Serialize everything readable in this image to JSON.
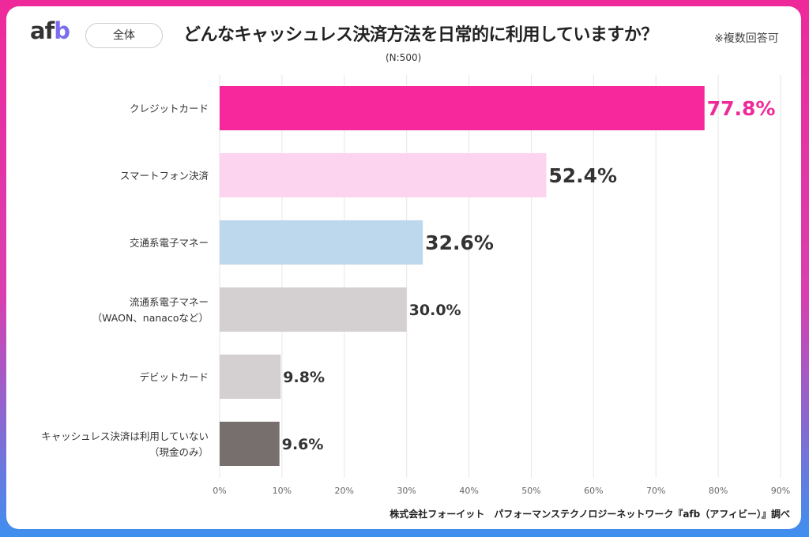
{
  "header": {
    "logo": "afb",
    "filter_pill": "全体",
    "title": "どんなキャッシュレス決済方法を日常的に利用していますか？",
    "note": "※複数回答可",
    "sample": "(N:500)"
  },
  "source": "株式会社フォーイット　パフォーマンステクノロジーネットワーク『afb（アフィビー）』調べ",
  "chart_data": {
    "type": "bar",
    "orientation": "horizontal",
    "title": "どんなキャッシュレス決済方法を日常的に利用していますか？",
    "categories": [
      [
        "クレジットカード"
      ],
      [
        "スマートフォン決済"
      ],
      [
        "交通系電子マネー"
      ],
      [
        "流通系電子マネー",
        "（WAON、nanacoなど）"
      ],
      [
        "デビットカード"
      ],
      [
        "キャッシュレス決済は利用していない",
        "（現金のみ）"
      ]
    ],
    "values": [
      77.8,
      52.4,
      32.6,
      30.0,
      9.8,
      9.6
    ],
    "value_labels": [
      "77.8%",
      "52.4%",
      "32.6%",
      "30.0%",
      "9.8%",
      "9.6%"
    ],
    "colors": [
      "#f7289c",
      "#fcd4ef",
      "#bdd7ec",
      "#d4cfd0",
      "#d4cfd0",
      "#776f6d"
    ],
    "label_colors": [
      "#ee2a9a",
      "#333333",
      "#333333",
      "#333333",
      "#333333",
      "#333333"
    ],
    "xlim": [
      0,
      90
    ],
    "xticks": [
      "0%",
      "10%",
      "20%",
      "30%",
      "40%",
      "50%",
      "60%",
      "70%",
      "80%",
      "90%"
    ],
    "grid": true,
    "xlabel": "",
    "ylabel": ""
  }
}
